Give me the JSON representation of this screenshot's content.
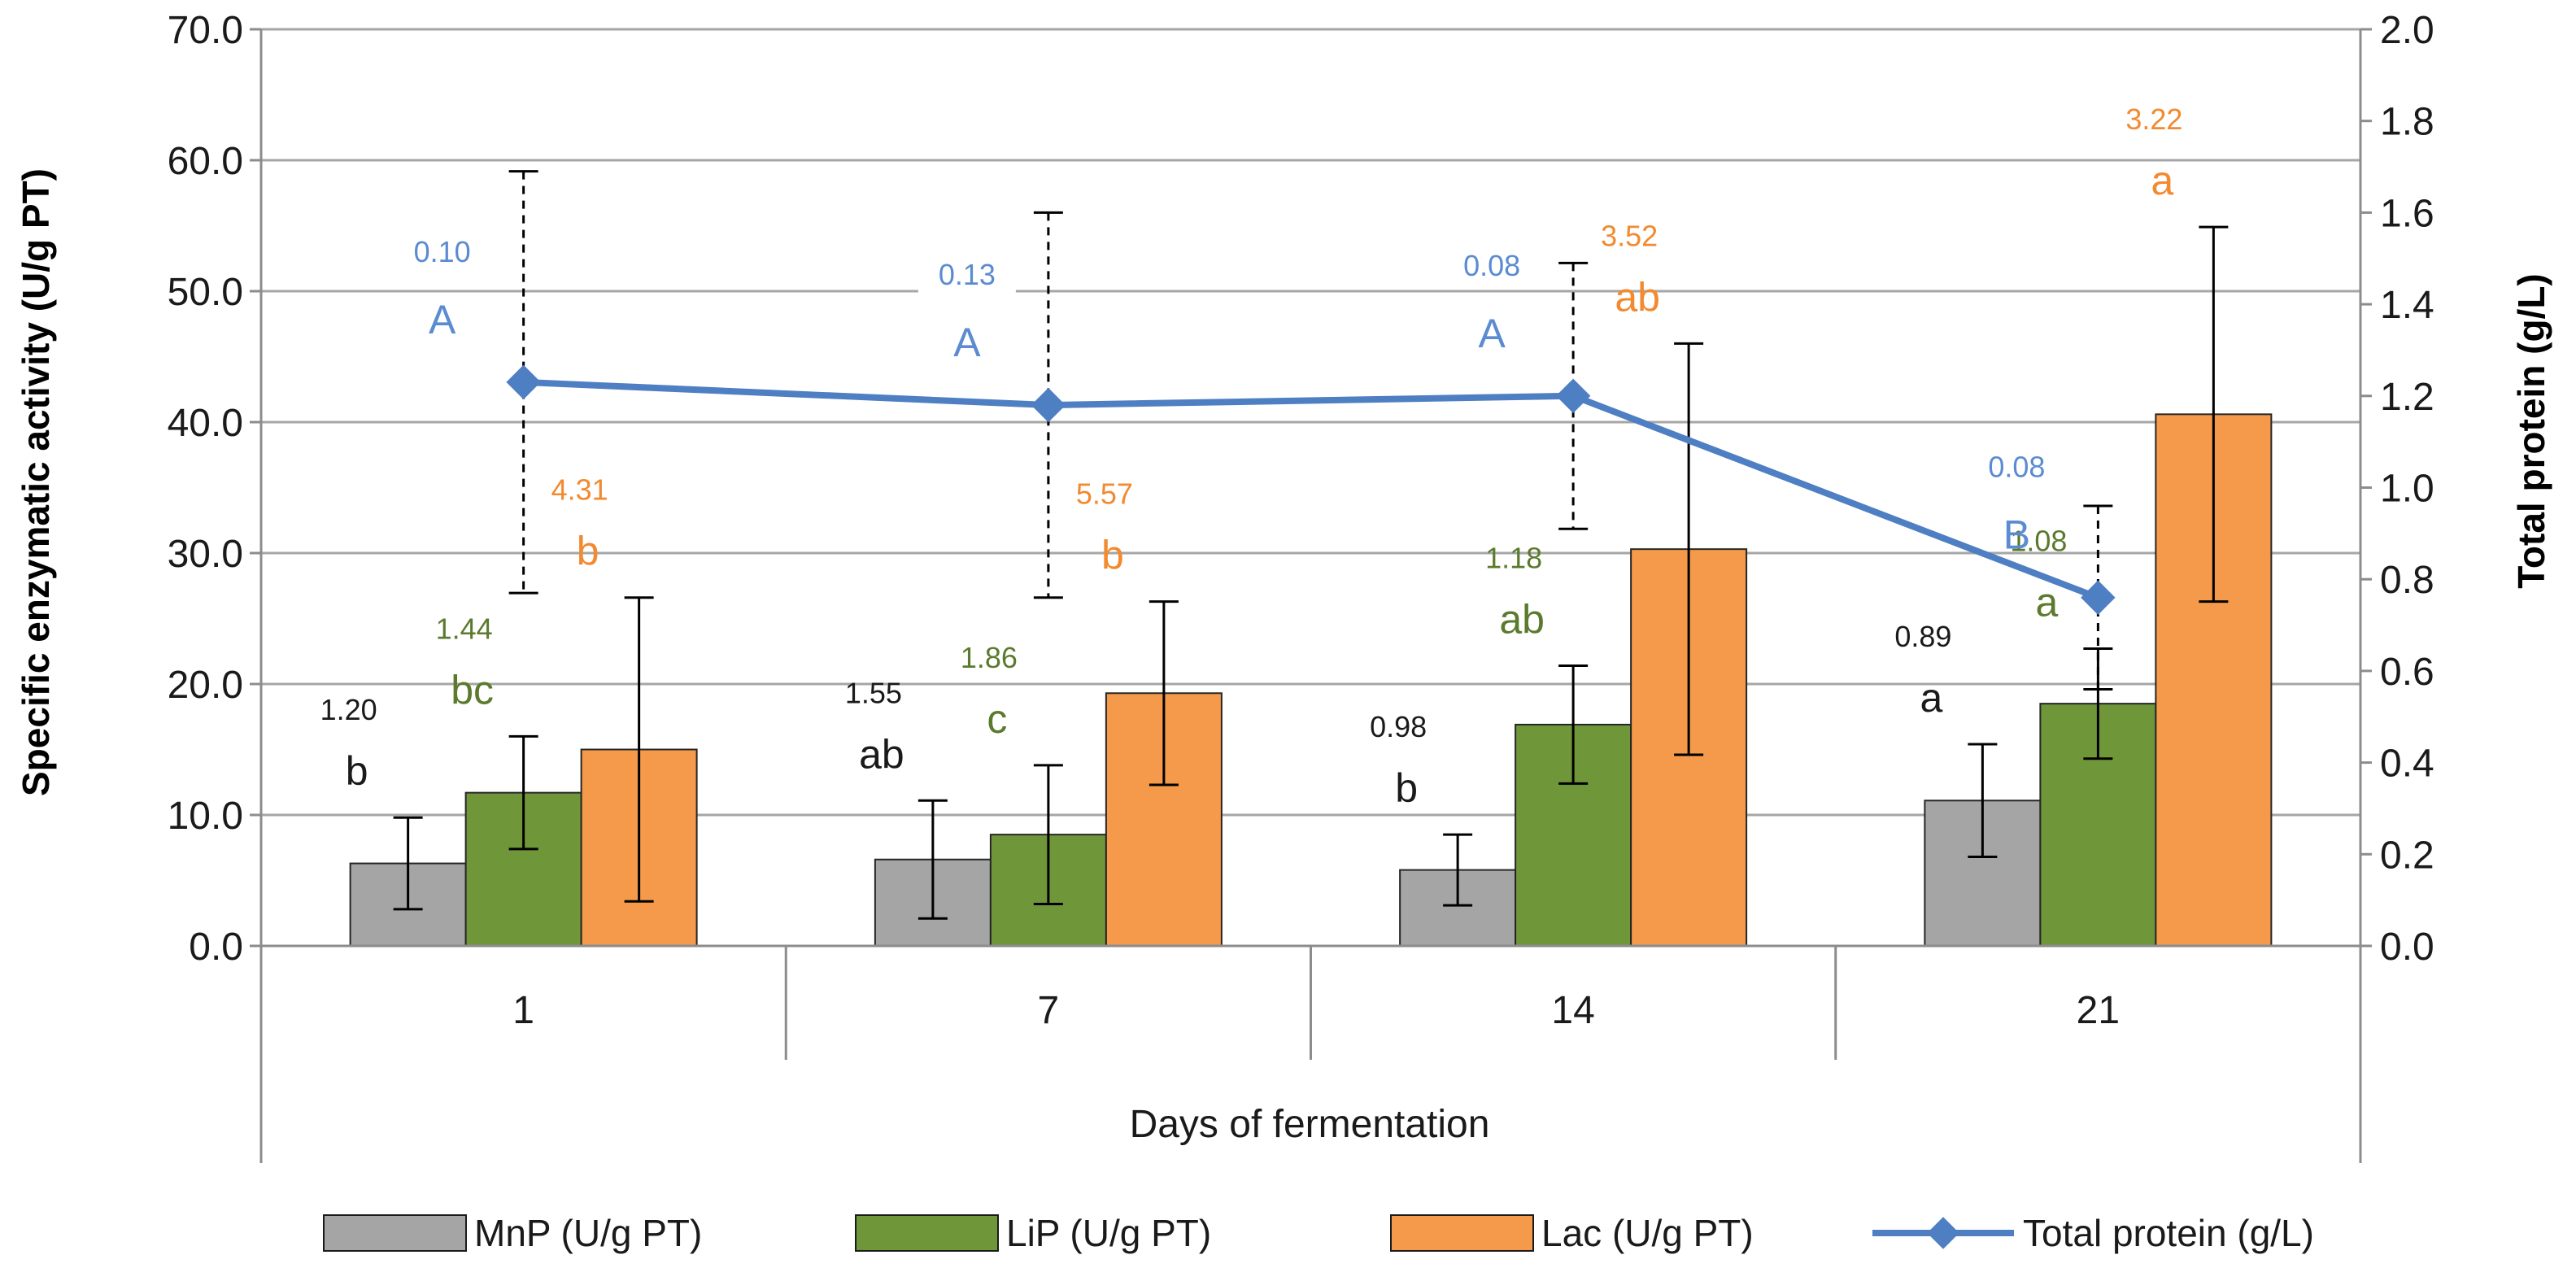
{
  "chart_data": {
    "type": "bar",
    "categories": [
      "1",
      "7",
      "14",
      "21"
    ],
    "xlabel": "Days of fermentation",
    "ylabel": "Specific enzymatic activity  (U/g PT)",
    "y2label": "Total protein  (g/L)",
    "ylim": [
      0,
      70
    ],
    "y2lim": [
      0,
      2
    ],
    "yticks": [
      "0.0",
      "10.0",
      "20.0",
      "30.0",
      "40.0",
      "50.0",
      "60.0",
      "70.0"
    ],
    "y2ticks": [
      "0.0",
      "0.2",
      "0.4",
      "0.6",
      "0.8",
      "1.0",
      "1.2",
      "1.4",
      "1.6",
      "1.8",
      "2.0"
    ],
    "grid": true,
    "legend_position": "bottom",
    "series": [
      {
        "name": "MnP (U/g PT)",
        "kind": "bar",
        "axis": "left",
        "color": "#a5a5a5",
        "values": [
          6.3,
          6.6,
          5.8,
          11.1
        ],
        "errors": [
          3.5,
          4.5,
          2.7,
          4.3
        ],
        "sd_labels": [
          "1.20",
          "1.55",
          "0.98",
          "0.89"
        ],
        "letters": [
          "b",
          "ab",
          "b",
          "a"
        ],
        "label_color": "#1a1a1a"
      },
      {
        "name": "LiP (U/g PT)",
        "kind": "bar",
        "axis": "left",
        "color": "#70963a",
        "values": [
          11.7,
          8.5,
          16.9,
          18.5
        ],
        "errors": [
          4.3,
          5.3,
          4.5,
          4.2
        ],
        "sd_labels": [
          "1.44",
          "1.86",
          "1.18",
          "1.08"
        ],
        "letters": [
          "bc",
          "c",
          "ab",
          "a"
        ],
        "label_color": "#5b7a2e"
      },
      {
        "name": "Lac (U/g PT)",
        "kind": "bar",
        "axis": "left",
        "color": "#f59a4a",
        "values": [
          15.0,
          19.3,
          30.3,
          40.6
        ],
        "errors": [
          11.6,
          7.0,
          15.7,
          14.3
        ],
        "sd_labels": [
          "4.31",
          "5.57",
          "3.52",
          "3.22"
        ],
        "letters": [
          "b",
          "b",
          "ab",
          "a"
        ],
        "label_color": "#f28a30"
      },
      {
        "name": "Total protein (g/L)",
        "kind": "line",
        "axis": "right",
        "color": "#4f7fc3",
        "label_color": "#5b8bd0",
        "values": [
          1.23,
          1.18,
          1.2,
          0.76
        ],
        "errors": [
          0.46,
          0.42,
          0.29,
          0.2
        ],
        "sd_labels": [
          "0.10",
          "0.13",
          "0.08",
          "0.08"
        ],
        "letters": [
          "A",
          "A",
          "A",
          "B"
        ]
      }
    ]
  }
}
